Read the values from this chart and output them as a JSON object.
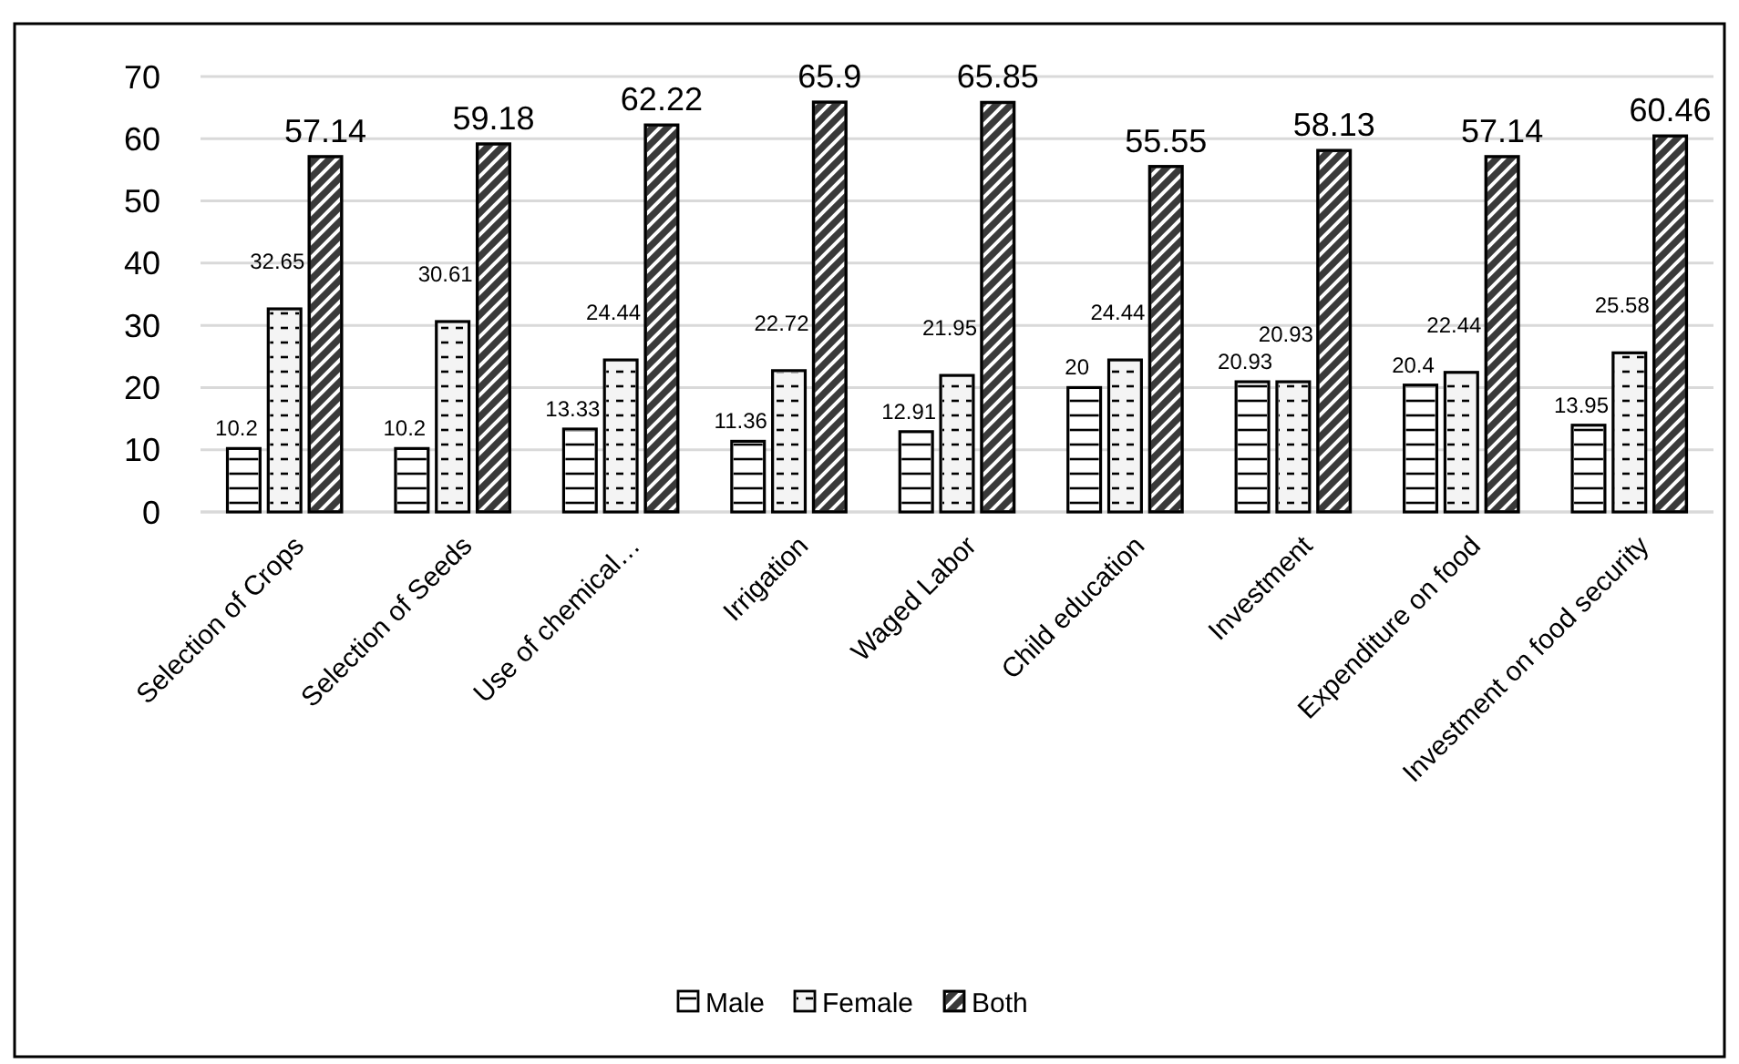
{
  "chart_data": {
    "type": "bar",
    "categories": [
      "Selection of Crops",
      "Selection of Seeds",
      "Use of chemical…",
      "Irrigation",
      "Waged Labor",
      "Child education",
      "Investment",
      "Expenditure on food",
      "Investment on food security"
    ],
    "series": [
      {
        "name": "Male",
        "color": "#ffffff",
        "values": [
          10.2,
          10.2,
          13.33,
          11.36,
          12.91,
          20,
          20.93,
          20.4,
          13.95
        ]
      },
      {
        "name": "Female",
        "color": "#f4f4f4",
        "values": [
          32.65,
          30.61,
          24.44,
          22.72,
          21.95,
          24.44,
          20.93,
          22.44,
          25.58
        ]
      },
      {
        "name": "Both",
        "color": "#3a3a3a",
        "values": [
          57.14,
          59.18,
          62.22,
          65.9,
          65.85,
          55.55,
          58.13,
          57.14,
          60.46
        ]
      }
    ],
    "ylim": [
      0,
      70
    ],
    "yticks": [
      0,
      10,
      20,
      30,
      40,
      50,
      60,
      70
    ],
    "grid": "y",
    "legend": "bottom",
    "data_labels": true
  }
}
